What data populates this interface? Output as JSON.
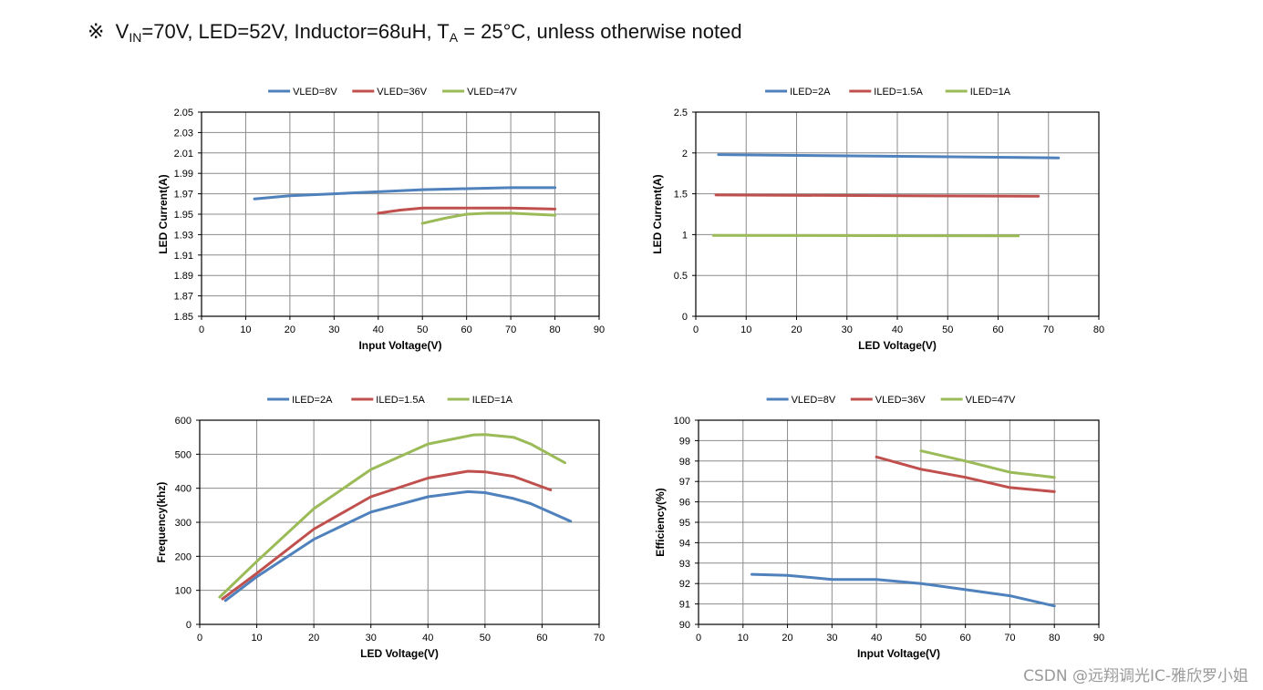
{
  "header": {
    "symbol": "※",
    "v": "V",
    "vin_sub": "IN",
    "part1": "=70V, LED=52V, Inductor=68uH, T",
    "ta_sub": "A",
    "part2": " = 25°C, unless otherwise noted"
  },
  "watermark": "CSDN @远翔调光IC-雅欣罗小姐",
  "chart_data": [
    {
      "id": "c1",
      "type": "line",
      "title": "",
      "xlabel": "Input Voltage(V)",
      "ylabel": "LED Current(A)",
      "xlim": [
        0,
        90
      ],
      "ylim": [
        1.85,
        2.05
      ],
      "xticks": [
        0,
        10,
        20,
        30,
        40,
        50,
        60,
        70,
        80,
        90
      ],
      "yticks": [
        1.85,
        1.87,
        1.89,
        1.91,
        1.93,
        1.95,
        1.97,
        1.99,
        2.01,
        2.03,
        2.05
      ],
      "ydecimals": 2,
      "grid": true,
      "legend": "top",
      "series": [
        {
          "name": "VLED=8V",
          "color": "#4f81bd",
          "x": [
            12,
            20,
            30,
            40,
            50,
            60,
            70,
            80
          ],
          "y": [
            1.965,
            1.968,
            1.97,
            1.972,
            1.974,
            1.975,
            1.976,
            1.976
          ]
        },
        {
          "name": "VLED=36V",
          "color": "#c0504d",
          "x": [
            40,
            45,
            50,
            55,
            60,
            65,
            70,
            80
          ],
          "y": [
            1.951,
            1.954,
            1.956,
            1.956,
            1.956,
            1.956,
            1.956,
            1.955
          ]
        },
        {
          "name": "VLED=47V",
          "color": "#9bbb59",
          "x": [
            50,
            55,
            60,
            65,
            70,
            80
          ],
          "y": [
            1.941,
            1.946,
            1.95,
            1.951,
            1.951,
            1.949
          ]
        }
      ]
    },
    {
      "id": "c2",
      "type": "line",
      "title": "",
      "xlabel": "LED Voltage(V)",
      "ylabel": "LED Current(A)",
      "xlim": [
        0,
        80
      ],
      "ylim": [
        0,
        2.5
      ],
      "xticks": [
        0,
        10,
        20,
        30,
        40,
        50,
        60,
        70,
        80
      ],
      "yticks": [
        0,
        0.5,
        1,
        1.5,
        2,
        2.5
      ],
      "ydecimals": -1,
      "grid": true,
      "legend": "top",
      "series": [
        {
          "name": "ILED=2A",
          "color": "#4f81bd",
          "x": [
            4.5,
            72
          ],
          "y": [
            1.98,
            1.94
          ]
        },
        {
          "name": "ILED=1.5A",
          "color": "#c0504d",
          "x": [
            4,
            68
          ],
          "y": [
            1.485,
            1.47
          ]
        },
        {
          "name": "ILED=1A",
          "color": "#9bbb59",
          "x": [
            3.5,
            64
          ],
          "y": [
            0.99,
            0.985
          ]
        }
      ]
    },
    {
      "id": "c3",
      "type": "line",
      "title": "",
      "xlabel": "LED Voltage(V)",
      "ylabel": "Frequency(khz)",
      "xlim": [
        0,
        70
      ],
      "ylim": [
        0,
        600
      ],
      "xticks": [
        0,
        10,
        20,
        30,
        40,
        50,
        60,
        70
      ],
      "yticks": [
        0,
        100,
        200,
        300,
        400,
        500,
        600
      ],
      "ydecimals": 0,
      "grid": true,
      "legend": "top",
      "series": [
        {
          "name": "ILED=2A",
          "color": "#4f81bd",
          "x": [
            4.5,
            10,
            20,
            30,
            40,
            47,
            50,
            55,
            58,
            65
          ],
          "y": [
            70,
            140,
            250,
            330,
            375,
            390,
            387,
            370,
            355,
            303
          ]
        },
        {
          "name": "ILED=1.5A",
          "color": "#c0504d",
          "x": [
            4,
            10,
            20,
            30,
            40,
            47,
            50,
            55,
            61.5
          ],
          "y": [
            75,
            150,
            280,
            375,
            430,
            450,
            448,
            435,
            395
          ]
        },
        {
          "name": "ILED=1A",
          "color": "#9bbb59",
          "x": [
            3.5,
            10,
            20,
            30,
            40,
            48,
            50,
            55,
            58,
            64
          ],
          "y": [
            80,
            185,
            340,
            455,
            530,
            557,
            558,
            550,
            530,
            475
          ]
        }
      ]
    },
    {
      "id": "c4",
      "type": "line",
      "title": "",
      "xlabel": "Input Voltage(V)",
      "ylabel": "Efficiency(%)",
      "xlim": [
        0,
        90
      ],
      "ylim": [
        90,
        100
      ],
      "xticks": [
        0,
        10,
        20,
        30,
        40,
        50,
        60,
        70,
        80,
        90
      ],
      "yticks": [
        90,
        91,
        92,
        93,
        94,
        95,
        96,
        97,
        98,
        99,
        100
      ],
      "ydecimals": 0,
      "grid": true,
      "legend": "top",
      "series": [
        {
          "name": "VLED=8V",
          "color": "#4f81bd",
          "x": [
            12,
            20,
            30,
            35,
            40,
            50,
            60,
            70,
            80
          ],
          "y": [
            92.45,
            92.4,
            92.2,
            92.2,
            92.2,
            92.0,
            91.7,
            91.4,
            90.9
          ]
        },
        {
          "name": "VLED=36V",
          "color": "#c0504d",
          "x": [
            40,
            50,
            60,
            70,
            80
          ],
          "y": [
            98.2,
            97.6,
            97.2,
            96.7,
            96.5
          ]
        },
        {
          "name": "VLED=47V",
          "color": "#9bbb59",
          "x": [
            50,
            60,
            70,
            80
          ],
          "y": [
            98.5,
            98.0,
            97.45,
            97.2
          ]
        }
      ]
    }
  ]
}
